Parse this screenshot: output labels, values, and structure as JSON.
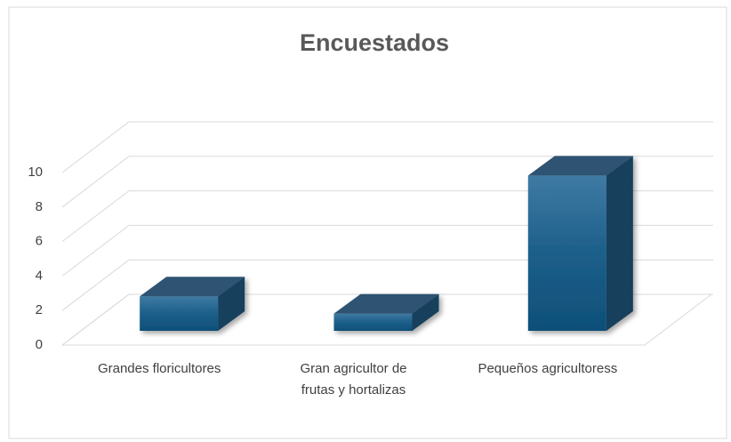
{
  "chart_data": {
    "type": "bar3d",
    "title": "Encuestados",
    "categories": [
      "Grandes floricultores",
      "Gran agricultor de frutas y hortalizas",
      "Pequeños agricultoress"
    ],
    "values": [
      2,
      1,
      9
    ],
    "color": "#1c5f8a",
    "ylim": [
      0,
      10
    ],
    "yticks": [
      0,
      2,
      4,
      6,
      8,
      10
    ],
    "grid": true
  }
}
